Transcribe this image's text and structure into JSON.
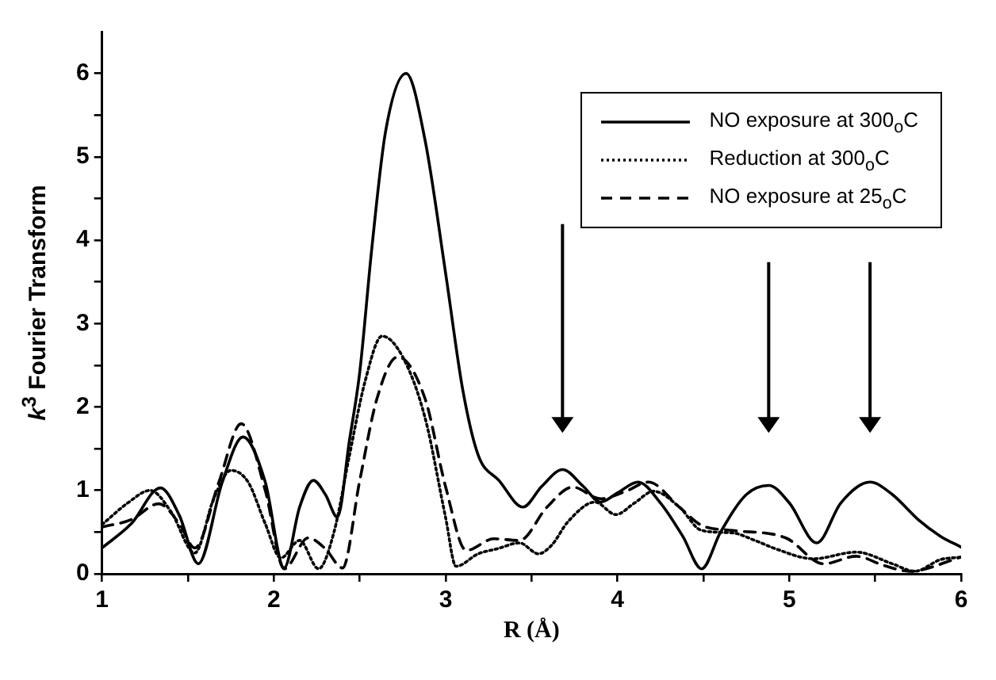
{
  "chart_data": {
    "type": "line",
    "xlabel": "R (Å)",
    "ylabel": "k$^{3}$ Fourier Transform",
    "xlim": [
      1,
      6
    ],
    "ylim": [
      0,
      6.5
    ],
    "xticks": [
      1,
      {
        "value": 1.5,
        "label": null
      },
      2,
      {
        "value": 2.5,
        "label": null
      },
      3,
      {
        "value": 3.5,
        "label": null
      },
      4,
      {
        "value": 4.5,
        "label": null
      },
      5,
      {
        "value": 5.5,
        "label": null
      },
      6
    ],
    "yticks": [
      0,
      {
        "value": 0.5,
        "label": null
      },
      1,
      {
        "value": 1.5,
        "label": null
      },
      2,
      {
        "value": 2.5,
        "label": null
      },
      3,
      {
        "value": 3.5,
        "label": null
      },
      4,
      {
        "value": 4.5,
        "label": null
      },
      5,
      {
        "value": 5.5,
        "label": null
      },
      6
    ],
    "grid": false,
    "legend": "top right",
    "marker": "none",
    "series": [
      {
        "name": "NO exposure at 300$_{o}$C",
        "color": "#000000",
        "line_style": "solid",
        "x": [
          1,
          1.17,
          1.34,
          1.45,
          1.56,
          1.7,
          1.82,
          1.95,
          2.06,
          2.15,
          2.23,
          2.3,
          2.37,
          2.44,
          2.5,
          2.57,
          2.65,
          2.77,
          2.88,
          3.0,
          3.1,
          3.19,
          3.31,
          3.45,
          3.56,
          3.68,
          3.8,
          3.9,
          4.0,
          4.12,
          4.25,
          4.38,
          4.49,
          4.6,
          4.75,
          4.88,
          5.0,
          5.16,
          5.3,
          5.47,
          5.6,
          5.75,
          5.88,
          6.0
        ],
        "values": [
          0.31,
          0.6,
          1.03,
          0.7,
          0.12,
          1.1,
          1.64,
          1.1,
          0.07,
          0.8,
          1.12,
          0.95,
          0.68,
          1.6,
          2.42,
          3.9,
          5.3,
          6.0,
          5.2,
          3.6,
          2.2,
          1.42,
          1.12,
          0.8,
          1.05,
          1.25,
          1.05,
          0.86,
          0.97,
          1.1,
          0.85,
          0.45,
          0.06,
          0.5,
          0.95,
          1.06,
          0.85,
          0.37,
          0.85,
          1.1,
          0.95,
          0.65,
          0.45,
          0.32
        ]
      },
      {
        "name": "Reduction at 300$_{o}$C",
        "color": "#000000",
        "line_style": "dotted",
        "x": [
          1,
          1.15,
          1.28,
          1.4,
          1.54,
          1.65,
          1.75,
          1.85,
          1.95,
          2.04,
          2.15,
          2.26,
          2.35,
          2.44,
          2.53,
          2.63,
          2.75,
          2.88,
          3.0,
          3.06,
          3.19,
          3.3,
          3.43,
          3.54,
          3.62,
          3.71,
          3.87,
          3.99,
          4.1,
          4.21,
          4.36,
          4.49,
          4.67,
          4.8,
          4.92,
          5.14,
          5.39,
          5.6,
          5.73,
          5.88,
          6.0
        ],
        "values": [
          0.59,
          0.85,
          1.0,
          0.75,
          0.25,
          0.9,
          1.24,
          1.1,
          0.6,
          0.19,
          0.4,
          0.06,
          0.5,
          1.42,
          2.3,
          2.85,
          2.6,
          1.87,
          0.67,
          0.09,
          0.24,
          0.3,
          0.37,
          0.24,
          0.35,
          0.62,
          0.86,
          0.71,
          0.85,
          0.99,
          0.8,
          0.52,
          0.49,
          0.4,
          0.3,
          0.18,
          0.26,
          0.12,
          0.03,
          0.17,
          0.2
        ]
      },
      {
        "name": "NO exposure at 25$_{o}$C",
        "color": "#000000",
        "line_style": "dashed",
        "x": [
          1,
          1.17,
          1.33,
          1.45,
          1.54,
          1.68,
          1.81,
          1.95,
          2.06,
          2.2,
          2.3,
          2.4,
          2.5,
          2.6,
          2.72,
          2.88,
          3.0,
          3.12,
          3.28,
          3.43,
          3.59,
          3.74,
          3.9,
          4.05,
          4.18,
          4.36,
          4.49,
          4.67,
          4.98,
          5.2,
          5.39,
          5.55,
          5.7,
          6.0
        ],
        "values": [
          0.56,
          0.65,
          0.84,
          0.6,
          0.31,
          1.1,
          1.8,
          1.0,
          0.06,
          0.43,
          0.3,
          0.07,
          1.12,
          2.1,
          2.6,
          2.1,
          1.04,
          0.28,
          0.42,
          0.4,
          0.8,
          1.04,
          0.9,
          0.99,
          1.1,
          0.8,
          0.58,
          0.52,
          0.43,
          0.12,
          0.21,
          0.1,
          0.03,
          0.2
        ]
      }
    ]
  }
}
